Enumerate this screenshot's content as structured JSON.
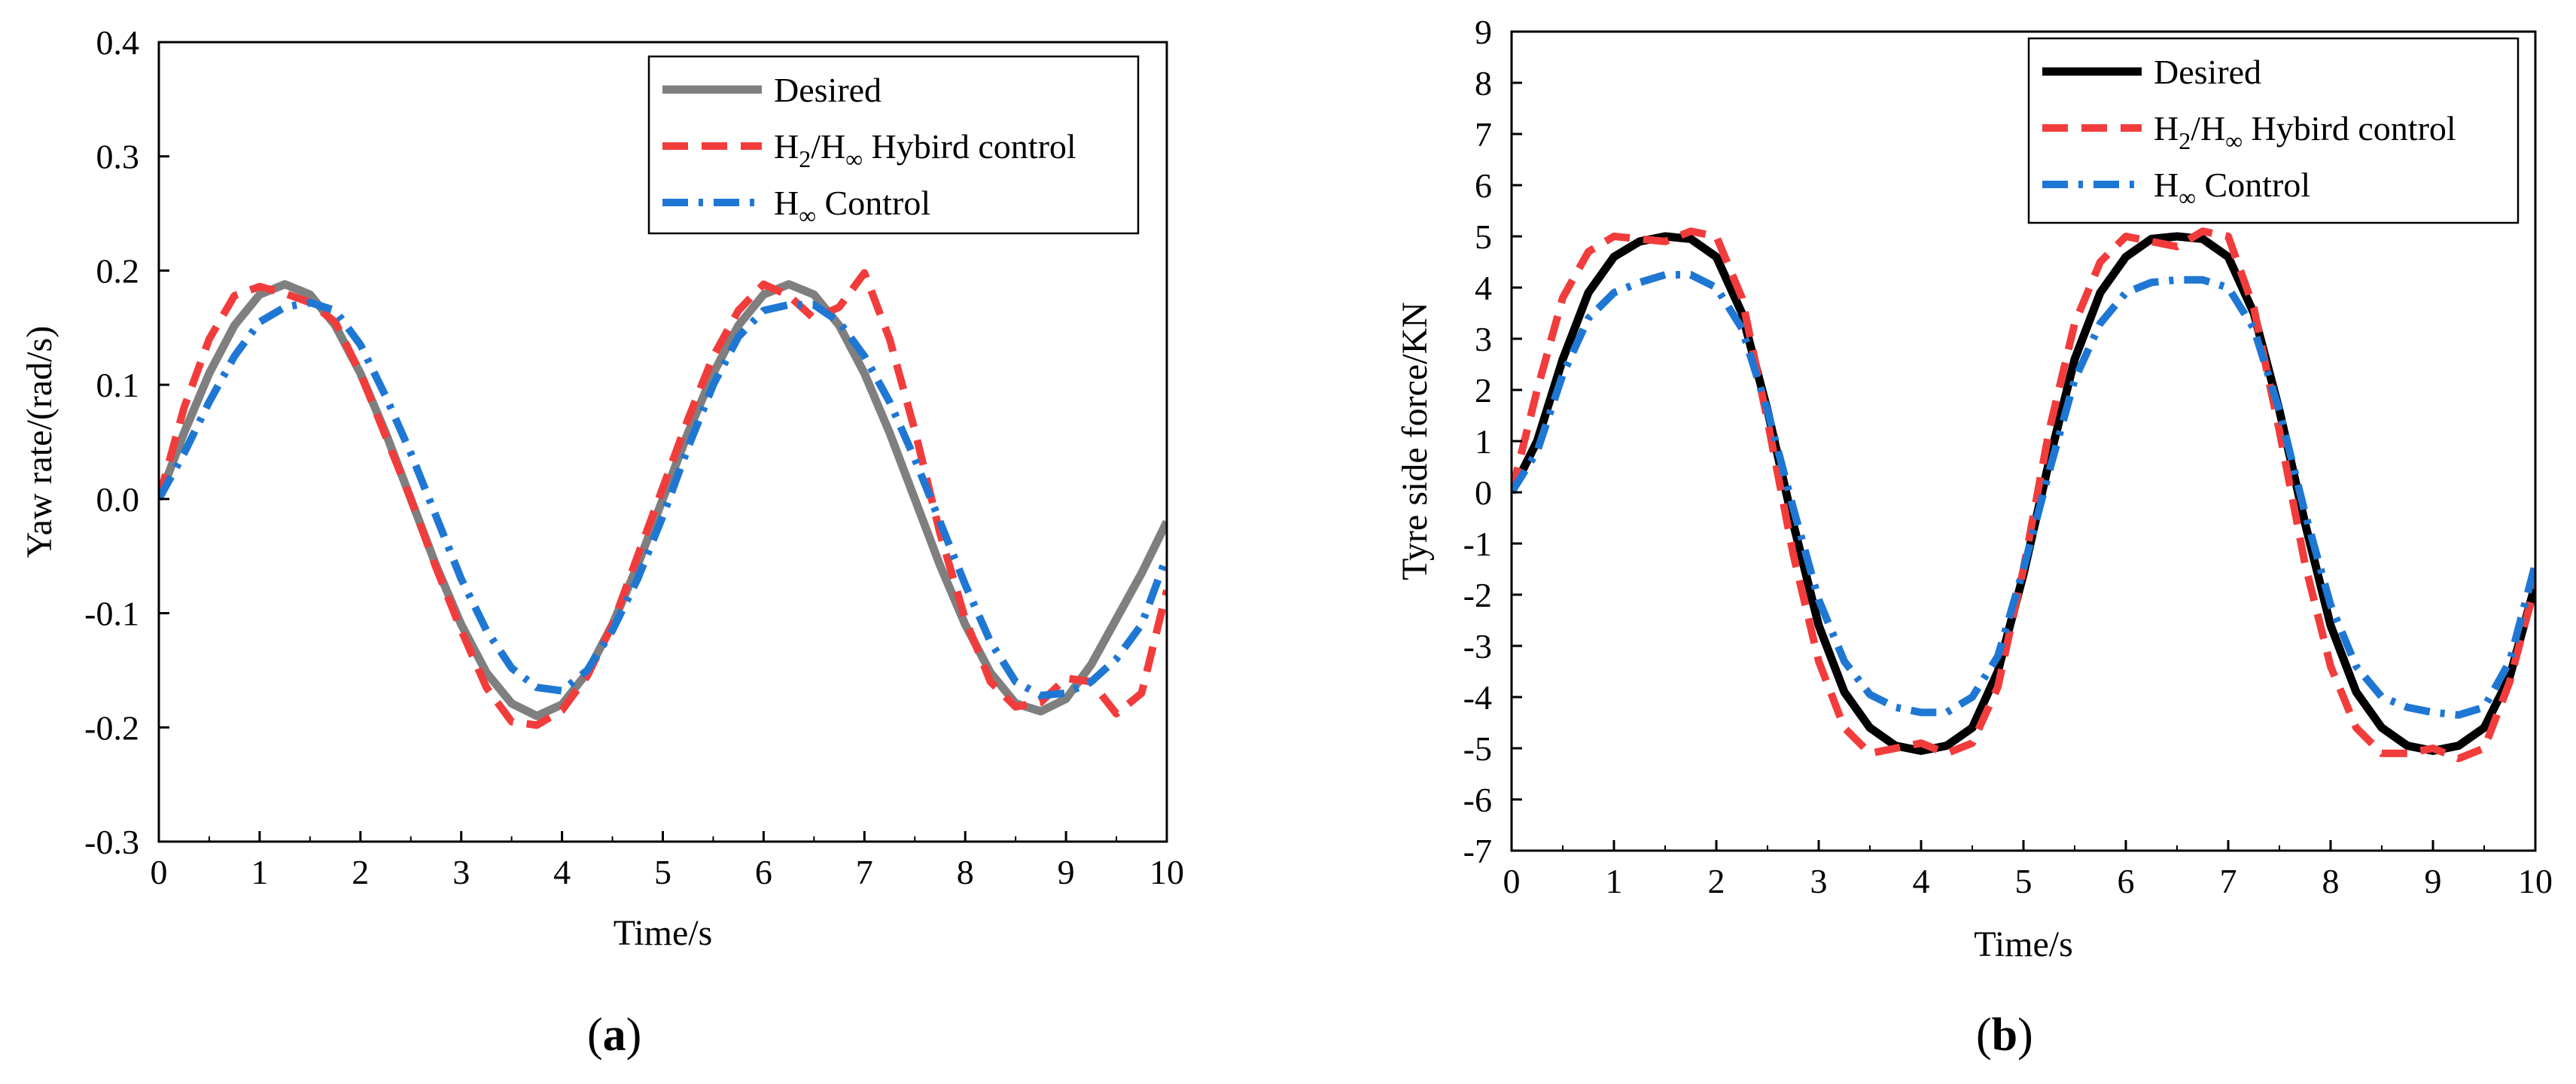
{
  "chart_data": [
    {
      "type": "line",
      "panel_label": "(a)",
      "panel_letter": "a",
      "xlabel": "Time/s",
      "ylabel": "Yaw rate/(rad/s)",
      "xlim": [
        0,
        10
      ],
      "ylim": [
        -0.3,
        0.4
      ],
      "x_ticks": [
        0,
        1,
        2,
        3,
        4,
        5,
        6,
        7,
        8,
        9,
        10
      ],
      "x_tick_labels": [
        "0",
        "1",
        "2",
        "3",
        "4",
        "5",
        "6",
        "7",
        "8",
        "9",
        "10"
      ],
      "y_ticks": [
        -0.3,
        -0.2,
        -0.1,
        0.0,
        0.1,
        0.2,
        0.3,
        0.4
      ],
      "y_tick_labels": [
        "-0.3",
        "-0.2",
        "-0.1",
        "0.0",
        "0.1",
        "0.2",
        "0.3",
        "0.4"
      ],
      "legend": {
        "location": "top-right"
      },
      "series": [
        {
          "name": "Desired",
          "legend_parts": [
            "Desired"
          ],
          "color": "#7f7f7f",
          "style": "solid",
          "x": [
            0,
            0.25,
            0.5,
            0.75,
            1.0,
            1.25,
            1.5,
            1.75,
            2.0,
            2.25,
            2.5,
            2.75,
            3.0,
            3.25,
            3.5,
            3.75,
            4.0,
            4.25,
            4.5,
            4.75,
            5.0,
            5.25,
            5.5,
            5.75,
            6.0,
            6.25,
            6.5,
            6.75,
            7.0,
            7.25,
            7.5,
            7.75,
            8.0,
            8.25,
            8.5,
            8.75,
            9.0,
            9.25,
            9.5,
            9.75,
            10.0
          ],
          "y": [
            0.0,
            0.058,
            0.11,
            0.152,
            0.179,
            0.188,
            0.179,
            0.152,
            0.11,
            0.058,
            0.0,
            -0.058,
            -0.11,
            -0.152,
            -0.179,
            -0.19,
            -0.18,
            -0.152,
            -0.11,
            -0.058,
            0.0,
            0.058,
            0.11,
            0.152,
            0.179,
            0.188,
            0.179,
            0.152,
            0.11,
            0.058,
            0.0,
            -0.058,
            -0.11,
            -0.152,
            -0.179,
            -0.186,
            -0.175,
            -0.145,
            -0.105,
            -0.065,
            -0.02
          ]
        },
        {
          "name": "H2/H∞ Hybird control",
          "legend_parts": [
            "H",
            "2",
            "/H",
            "∞",
            " Hybird control"
          ],
          "color": "#f23c3c",
          "style": "dashed",
          "x": [
            0,
            0.25,
            0.5,
            0.75,
            1.0,
            1.25,
            1.5,
            1.75,
            2.0,
            2.25,
            2.5,
            2.75,
            3.0,
            3.25,
            3.5,
            3.75,
            4.0,
            4.25,
            4.5,
            4.75,
            5.0,
            5.25,
            5.5,
            5.75,
            6.0,
            6.25,
            6.5,
            6.75,
            7.0,
            7.25,
            7.5,
            7.75,
            8.0,
            8.25,
            8.5,
            8.75,
            9.0,
            9.25,
            9.5,
            9.75,
            10.0
          ],
          "y": [
            0.0,
            0.08,
            0.14,
            0.178,
            0.186,
            0.18,
            0.172,
            0.155,
            0.11,
            0.055,
            0.0,
            -0.06,
            -0.115,
            -0.165,
            -0.195,
            -0.198,
            -0.185,
            -0.155,
            -0.11,
            -0.05,
            0.01,
            0.07,
            0.125,
            0.165,
            0.188,
            0.178,
            0.158,
            0.168,
            0.198,
            0.14,
            0.06,
            -0.03,
            -0.105,
            -0.16,
            -0.182,
            -0.178,
            -0.157,
            -0.16,
            -0.188,
            -0.17,
            -0.08
          ]
        },
        {
          "name": "H∞ Control",
          "legend_parts": [
            "H",
            "∞",
            " Control"
          ],
          "color": "#1f77d4",
          "style": "dashdot",
          "x": [
            0,
            0.25,
            0.5,
            0.75,
            1.0,
            1.25,
            1.5,
            1.75,
            2.0,
            2.25,
            2.5,
            2.75,
            3.0,
            3.25,
            3.5,
            3.75,
            4.0,
            4.25,
            4.5,
            4.75,
            5.0,
            5.25,
            5.5,
            5.75,
            6.0,
            6.25,
            6.5,
            6.75,
            7.0,
            7.25,
            7.5,
            7.75,
            8.0,
            8.25,
            8.5,
            8.75,
            9.0,
            9.25,
            9.5,
            9.75,
            10.0
          ],
          "y": [
            0.0,
            0.04,
            0.085,
            0.125,
            0.155,
            0.168,
            0.172,
            0.165,
            0.135,
            0.09,
            0.04,
            -0.015,
            -0.07,
            -0.115,
            -0.148,
            -0.165,
            -0.168,
            -0.15,
            -0.115,
            -0.07,
            -0.015,
            0.045,
            0.1,
            0.142,
            0.165,
            0.17,
            0.17,
            0.155,
            0.125,
            0.085,
            0.035,
            -0.02,
            -0.075,
            -0.125,
            -0.16,
            -0.172,
            -0.17,
            -0.16,
            -0.14,
            -0.11,
            -0.05
          ]
        }
      ]
    },
    {
      "type": "line",
      "panel_label": "(b)",
      "panel_letter": "b",
      "xlabel": "Time/s",
      "ylabel": "Tyre side force/KN",
      "xlim": [
        0,
        10
      ],
      "ylim": [
        -7,
        9
      ],
      "x_ticks": [
        0,
        1,
        2,
        3,
        4,
        5,
        6,
        7,
        8,
        9,
        10
      ],
      "x_tick_labels": [
        "0",
        "1",
        "2",
        "3",
        "4",
        "5",
        "6",
        "7",
        "8",
        "9",
        "10"
      ],
      "y_ticks": [
        -7,
        -6,
        -5,
        -4,
        -3,
        -2,
        -1,
        0,
        1,
        2,
        3,
        4,
        5,
        6,
        7,
        8,
        9
      ],
      "y_tick_labels": [
        "-7",
        "-6",
        "-5",
        "-4",
        "-3",
        "-2",
        "-1",
        "0",
        "1",
        "2",
        "3",
        "4",
        "5",
        "6",
        "7",
        "8",
        "9"
      ],
      "legend": {
        "location": "top-right"
      },
      "series": [
        {
          "name": "Desired",
          "legend_parts": [
            "Desired"
          ],
          "color": "#000000",
          "style": "solid",
          "x": [
            0,
            0.25,
            0.5,
            0.75,
            1.0,
            1.25,
            1.5,
            1.75,
            2.0,
            2.25,
            2.5,
            2.75,
            3.0,
            3.25,
            3.5,
            3.75,
            4.0,
            4.25,
            4.5,
            4.75,
            5.0,
            5.25,
            5.5,
            5.75,
            6.0,
            6.25,
            6.5,
            6.75,
            7.0,
            7.25,
            7.5,
            7.75,
            8.0,
            8.25,
            8.5,
            8.75,
            9.0,
            9.25,
            9.5,
            9.75,
            10.0
          ],
          "y": [
            0.0,
            1.0,
            2.6,
            3.9,
            4.6,
            4.9,
            5.0,
            4.95,
            4.6,
            3.5,
            1.6,
            -0.6,
            -2.6,
            -3.9,
            -4.6,
            -4.95,
            -5.05,
            -4.95,
            -4.6,
            -3.5,
            -1.6,
            0.6,
            2.6,
            3.9,
            4.6,
            4.95,
            5.0,
            4.95,
            4.6,
            3.5,
            1.6,
            -0.6,
            -2.6,
            -3.9,
            -4.6,
            -4.95,
            -5.05,
            -4.95,
            -4.6,
            -3.6,
            -1.8
          ]
        },
        {
          "name": "H2/H∞ Hybird control",
          "legend_parts": [
            "H",
            "2",
            "/H",
            "∞",
            " Hybird control"
          ],
          "color": "#f23c3c",
          "style": "dashed",
          "x": [
            0,
            0.25,
            0.5,
            0.75,
            1.0,
            1.25,
            1.5,
            1.75,
            2.0,
            2.25,
            2.5,
            2.75,
            3.0,
            3.25,
            3.5,
            3.75,
            4.0,
            4.25,
            4.5,
            4.75,
            5.0,
            5.25,
            5.5,
            5.75,
            6.0,
            6.25,
            6.5,
            6.75,
            7.0,
            7.25,
            7.5,
            7.75,
            8.0,
            8.25,
            8.5,
            8.75,
            9.0,
            9.25,
            9.5,
            9.75,
            10.0
          ],
          "y": [
            0.0,
            2.0,
            3.8,
            4.7,
            5.0,
            4.95,
            4.9,
            5.1,
            5.0,
            3.8,
            1.4,
            -1.2,
            -3.3,
            -4.6,
            -5.1,
            -5.0,
            -4.9,
            -5.1,
            -4.9,
            -3.8,
            -1.5,
            1.2,
            3.3,
            4.5,
            5.0,
            4.9,
            4.8,
            5.1,
            5.0,
            3.6,
            1.2,
            -1.4,
            -3.4,
            -4.6,
            -5.1,
            -5.1,
            -5.0,
            -5.2,
            -5.0,
            -3.7,
            -1.8
          ]
        },
        {
          "name": "H∞ Control",
          "legend_parts": [
            "H",
            "∞",
            " Control"
          ],
          "color": "#1f77d4",
          "style": "dashdot",
          "x": [
            0,
            0.25,
            0.5,
            0.75,
            1.0,
            1.25,
            1.5,
            1.75,
            2.0,
            2.25,
            2.5,
            2.75,
            3.0,
            3.25,
            3.5,
            3.75,
            4.0,
            4.25,
            4.5,
            4.75,
            5.0,
            5.25,
            5.5,
            5.75,
            6.0,
            6.25,
            6.5,
            6.75,
            7.0,
            7.25,
            7.5,
            7.75,
            8.0,
            8.25,
            8.5,
            8.75,
            9.0,
            9.25,
            9.5,
            9.75,
            10.0
          ],
          "y": [
            0.0,
            0.8,
            2.3,
            3.4,
            3.9,
            4.1,
            4.25,
            4.25,
            4.0,
            3.2,
            1.6,
            -0.3,
            -2.1,
            -3.3,
            -3.95,
            -4.2,
            -4.3,
            -4.3,
            -4.0,
            -3.2,
            -1.5,
            0.4,
            2.2,
            3.3,
            3.9,
            4.1,
            4.15,
            4.15,
            4.0,
            3.2,
            1.6,
            -0.4,
            -2.2,
            -3.4,
            -4.0,
            -4.2,
            -4.3,
            -4.35,
            -4.2,
            -3.3,
            -1.4
          ]
        }
      ]
    }
  ]
}
